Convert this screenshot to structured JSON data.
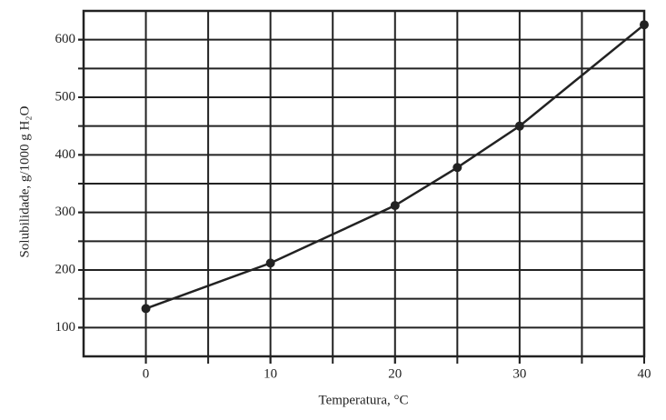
{
  "chart_data": {
    "type": "line",
    "x_label": "Temperatura, °C",
    "y_label": "Solubilidade, g/1000 g H₂O",
    "x": [
      0,
      10,
      20,
      25,
      30,
      40
    ],
    "series": [
      {
        "color": "#222222",
        "values": [
          133,
          212,
          312,
          378,
          450,
          626
        ]
      }
    ],
    "xlim": [
      -5,
      40
    ],
    "ylim": [
      50,
      650
    ],
    "xticks": [
      0,
      10,
      20,
      30,
      40
    ],
    "yticks": [
      100,
      200,
      300,
      400,
      500,
      600
    ],
    "xgrid": [
      0,
      5,
      10,
      15,
      20,
      25,
      30,
      35
    ],
    "ygrid": [
      100,
      150,
      200,
      250,
      300,
      350,
      400,
      450,
      500,
      550,
      600
    ],
    "grid": true
  }
}
